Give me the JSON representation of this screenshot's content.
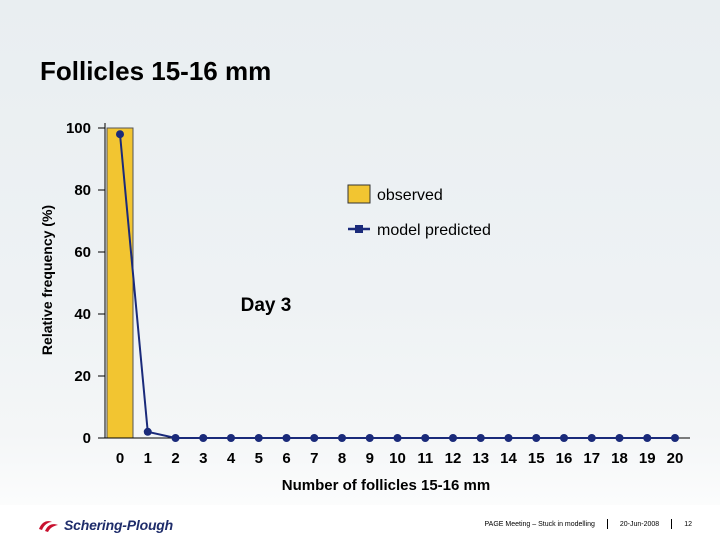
{
  "slide": {
    "title": "Follicles 15-16 mm"
  },
  "chart_data": {
    "type": "bar",
    "title": "Follicles 15-16 mm",
    "annotation": "Day 3",
    "xlabel": "Number of follicles 15-16 mm",
    "ylabel": "Relative frequency (%)",
    "ylim": [
      0,
      100
    ],
    "yticks": [
      0,
      20,
      40,
      60,
      80,
      100
    ],
    "categories": [
      "0",
      "1",
      "2",
      "3",
      "4",
      "5",
      "6",
      "7",
      "8",
      "9",
      "10",
      "11",
      "12",
      "13",
      "14",
      "15",
      "16",
      "17",
      "18",
      "19",
      "20"
    ],
    "series": [
      {
        "name": "observed",
        "kind": "bar",
        "color": "#f2c531",
        "values": [
          100,
          0,
          0,
          0,
          0,
          0,
          0,
          0,
          0,
          0,
          0,
          0,
          0,
          0,
          0,
          0,
          0,
          0,
          0,
          0,
          0
        ]
      },
      {
        "name": "model predicted",
        "kind": "line",
        "color": "#1a2a7a",
        "values": [
          98,
          2,
          0,
          0,
          0,
          0,
          0,
          0,
          0,
          0,
          0,
          0,
          0,
          0,
          0,
          0,
          0,
          0,
          0,
          0,
          0
        ]
      }
    ],
    "legend_position": "right"
  },
  "footer": {
    "logo_text": "Schering-Plough",
    "meeting": "PAGE Meeting – Stuck in modelling",
    "date": "20-Jun-2008",
    "page": "12"
  }
}
